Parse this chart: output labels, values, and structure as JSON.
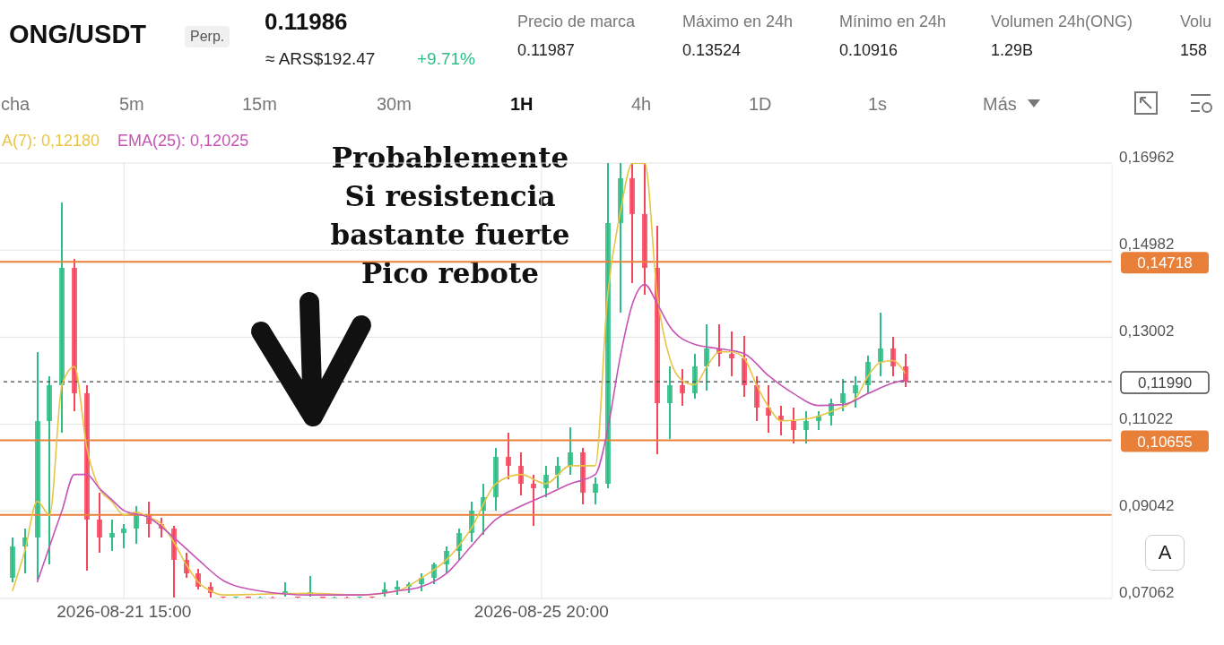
{
  "chart_data": {
    "type": "candlestick",
    "title": "ONG/USDT",
    "annotations": [
      "Perp.",
      "0.11986",
      "≈ ARS$192.47",
      "+9.71%",
      "Precio de marca",
      "0.11987",
      "Máximo en 24h",
      "0.13524",
      "Mínimo en 24h",
      "0.10916",
      "Volumen 24h(ONG)",
      "1.29B",
      "Volu",
      "158",
      "cha",
      "5m",
      "15m",
      "30m",
      "1H",
      "4h",
      "1D",
      "1s",
      "Más",
      "A",
      "Probablemente\nSi resistencia\nbastante fuerte\nPico rebote"
    ],
    "x": [
      "2026-08-20T12:00",
      "2026-08-20T15:00",
      "2026-08-20T18:00",
      "2026-08-20T21:00",
      "2026-08-21T00:00",
      "2026-08-21T03:00",
      "2026-08-21T06:00",
      "2026-08-21T09:00",
      "2026-08-21T12:00",
      "2026-08-21T15:00",
      "2026-08-21T18:00",
      "2026-08-21T21:00",
      "2026-08-22T00:00",
      "2026-08-22T03:00",
      "2026-08-22T06:00",
      "2026-08-22T09:00",
      "2026-08-22T12:00",
      "2026-08-22T15:00",
      "2026-08-22T18:00",
      "2026-08-22T21:00",
      "2026-08-23T00:00",
      "2026-08-23T03:00",
      "2026-08-23T06:00",
      "2026-08-23T09:00",
      "2026-08-23T12:00",
      "2026-08-23T15:00",
      "2026-08-23T18:00",
      "2026-08-23T21:00",
      "2026-08-24T00:00",
      "2026-08-24T03:00",
      "2026-08-24T06:00",
      "2026-08-24T09:00",
      "2026-08-24T12:00",
      "2026-08-24T15:00",
      "2026-08-24T18:00",
      "2026-08-24T21:00",
      "2026-08-25T00:00",
      "2026-08-25T03:00",
      "2026-08-25T06:00",
      "2026-08-25T09:00",
      "2026-08-25T12:00",
      "2026-08-25T15:00",
      "2026-08-25T18:00",
      "2026-08-25T21:00",
      "2026-08-26T00:00",
      "2026-08-26T03:00",
      "2026-08-26T06:00",
      "2026-08-26T09:00",
      "2026-08-26T12:00",
      "2026-08-26T15:00",
      "2026-08-26T18:00",
      "2026-08-26T21:00",
      "2026-08-27T00:00",
      "2026-08-27T03:00",
      "2026-08-27T06:00",
      "2026-08-27T09:00",
      "2026-08-27T12:00",
      "2026-08-27T15:00",
      "2026-08-27T18:00",
      "2026-08-27T21:00",
      "2026-08-28T00:00",
      "2026-08-28T03:00",
      "2026-08-28T06:00",
      "2026-08-28T09:00",
      "2026-08-28T12:00",
      "2026-08-28T15:00",
      "2026-08-28T18:00",
      "2026-08-28T21:00",
      "2026-08-29T00:00",
      "2026-08-29T03:00",
      "2026-08-29T06:00",
      "2026-08-29T09:00",
      "2026-08-29T12:00"
    ],
    "ohlc": [
      [
        0.0753,
        0.0845,
        0.0743,
        0.0825
      ],
      [
        0.0825,
        0.0865,
        0.0763,
        0.0845
      ],
      [
        0.0845,
        0.1267,
        0.0749,
        0.111
      ],
      [
        0.111,
        0.1212,
        0.0784,
        0.1192
      ],
      [
        0.1192,
        0.1606,
        0.1084,
        0.1457
      ],
      [
        0.1457,
        0.1478,
        0.1131,
        0.1172
      ],
      [
        0.1172,
        0.1192,
        0.0769,
        0.0886
      ],
      [
        0.0886,
        0.0947,
        0.081,
        0.0845
      ],
      [
        0.0845,
        0.0886,
        0.0814,
        0.0855
      ],
      [
        0.0855,
        0.0876,
        0.0821,
        0.0865
      ],
      [
        0.0865,
        0.0916,
        0.0831,
        0.0896
      ],
      [
        0.0896,
        0.0927,
        0.0845,
        0.0876
      ],
      [
        0.0876,
        0.089,
        0.0845,
        0.0865
      ],
      [
        0.0865,
        0.0872,
        0.0708,
        0.0794
      ],
      [
        0.0794,
        0.081,
        0.0753,
        0.0763
      ],
      [
        0.0763,
        0.0774,
        0.0727,
        0.0733
      ],
      [
        0.0733,
        0.0743,
        0.0708,
        0.0718
      ],
      [
        0.071,
        0.0711,
        0.07062,
        0.0708
      ],
      [
        0.0708,
        0.0711,
        0.07062,
        0.071
      ],
      [
        0.071,
        0.0711,
        0.07062,
        0.0707
      ],
      [
        0.0707,
        0.071,
        0.07062,
        0.0709
      ],
      [
        0.0709,
        0.0711,
        0.07062,
        0.0708
      ],
      [
        0.0718,
        0.0743,
        0.071,
        0.0723
      ],
      [
        0.071,
        0.0711,
        0.07062,
        0.0708
      ],
      [
        0.0718,
        0.0757,
        0.071,
        0.0721
      ],
      [
        0.071,
        0.0711,
        0.07062,
        0.0707
      ],
      [
        0.0707,
        0.071,
        0.07062,
        0.0709
      ],
      [
        0.0709,
        0.0711,
        0.07062,
        0.0708
      ],
      [
        0.0708,
        0.0711,
        0.07062,
        0.071
      ],
      [
        0.071,
        0.0711,
        0.07062,
        0.0708
      ],
      [
        0.0718,
        0.0743,
        0.071,
        0.0727
      ],
      [
        0.0727,
        0.0747,
        0.0714,
        0.0733
      ],
      [
        0.0733,
        0.0743,
        0.0718,
        0.0739
      ],
      [
        0.0739,
        0.0763,
        0.0723,
        0.0753
      ],
      [
        0.0753,
        0.0788,
        0.0739,
        0.0784
      ],
      [
        0.0784,
        0.0825,
        0.0763,
        0.0814
      ],
      [
        0.0814,
        0.0865,
        0.0794,
        0.0855
      ],
      [
        0.0855,
        0.0927,
        0.0835,
        0.0906
      ],
      [
        0.0906,
        0.0967,
        0.0851,
        0.0937
      ],
      [
        0.0937,
        0.1049,
        0.0906,
        0.1029
      ],
      [
        0.1029,
        0.1084,
        0.0978,
        0.1008
      ],
      [
        0.1008,
        0.1039,
        0.0941,
        0.0967
      ],
      [
        0.0967,
        0.0988,
        0.0872,
        0.0957
      ],
      [
        0.0957,
        0.1008,
        0.0937,
        0.0988
      ],
      [
        0.0988,
        0.1029,
        0.0957,
        0.1008
      ],
      [
        0.1008,
        0.1096,
        0.0988,
        0.1039
      ],
      [
        0.1039,
        0.1049,
        0.092,
        0.0947
      ],
      [
        0.0947,
        0.0982,
        0.092,
        0.0967
      ],
      [
        0.0967,
        0.16962,
        0.0957,
        0.1559
      ],
      [
        0.1559,
        0.16962,
        0.1355,
        0.1661
      ],
      [
        0.1661,
        0.16962,
        0.1423,
        0.158
      ],
      [
        0.158,
        0.16962,
        0.1396,
        0.1457
      ],
      [
        0.1457,
        0.1553,
        0.1035,
        0.1151
      ],
      [
        0.1151,
        0.1233,
        0.1069,
        0.1192
      ],
      [
        0.1192,
        0.1227,
        0.1145,
        0.1172
      ],
      [
        0.1172,
        0.1263,
        0.1161,
        0.1233
      ],
      [
        0.1233,
        0.1329,
        0.1178,
        0.1274
      ],
      [
        0.1274,
        0.1329,
        0.1233,
        0.1263
      ],
      [
        0.1263,
        0.1314,
        0.1212,
        0.1253
      ],
      [
        0.1253,
        0.1304,
        0.1165,
        0.1192
      ],
      [
        0.1192,
        0.1212,
        0.111,
        0.1141
      ],
      [
        0.1141,
        0.1192,
        0.1084,
        0.1121
      ],
      [
        0.1121,
        0.1145,
        0.1076,
        0.111
      ],
      [
        0.111,
        0.1141,
        0.1059,
        0.109
      ],
      [
        0.109,
        0.1131,
        0.1059,
        0.111
      ],
      [
        0.111,
        0.1131,
        0.109,
        0.1121
      ],
      [
        0.1121,
        0.1161,
        0.11,
        0.1151
      ],
      [
        0.1151,
        0.1206,
        0.1131,
        0.1172
      ],
      [
        0.1172,
        0.1212,
        0.1141,
        0.1192
      ],
      [
        0.1192,
        0.1259,
        0.1172,
        0.1243
      ],
      [
        0.1243,
        0.1355,
        0.1212,
        0.1274
      ],
      [
        0.1274,
        0.13,
        0.1212,
        0.1233
      ],
      [
        0.1233,
        0.1263,
        0.1186,
        0.1199
      ]
    ],
    "series": [
      {
        "name": "A(7): 0,12180",
        "type": "line",
        "color": "#e8c547",
        "x": [
          "2026-08-20T12:00",
          "2026-08-20T15:00",
          "2026-08-20T18:00",
          "2026-08-20T21:00",
          "2026-08-21T00:00",
          "2026-08-21T03:00",
          "2026-08-21T06:00",
          "2026-08-21T09:00",
          "2026-08-21T12:00",
          "2026-08-21T15:00",
          "2026-08-21T18:00",
          "2026-08-21T21:00",
          "2026-08-22T00:00",
          "2026-08-22T03:00",
          "2026-08-22T06:00",
          "2026-08-22T09:00",
          "2026-08-22T12:00",
          "2026-08-22T15:00",
          "2026-08-23T00:00",
          "2026-08-23T12:00",
          "2026-08-24T00:00",
          "2026-08-24T09:00",
          "2026-08-24T15:00",
          "2026-08-24T21:00",
          "2026-08-25T03:00",
          "2026-08-25T09:00",
          "2026-08-25T15:00",
          "2026-08-25T21:00",
          "2026-08-26T03:00",
          "2026-08-26T09:00",
          "2026-08-26T12:00",
          "2026-08-26T15:00",
          "2026-08-26T18:00",
          "2026-08-26T21:00",
          "2026-08-27T00:00",
          "2026-08-27T03:00",
          "2026-08-27T06:00",
          "2026-08-27T09:00",
          "2026-08-27T12:00",
          "2026-08-27T15:00",
          "2026-08-27T18:00",
          "2026-08-27T21:00",
          "2026-08-28T00:00",
          "2026-08-28T03:00",
          "2026-08-28T06:00",
          "2026-08-28T12:00",
          "2026-08-28T18:00",
          "2026-08-29T00:00",
          "2026-08-29T03:00",
          "2026-08-29T06:00",
          "2026-08-29T09:00",
          "2026-08-29T12:00"
        ],
        "values": [
          0.0723,
          0.0814,
          0.0927,
          0.0896,
          0.1192,
          0.1233,
          0.1049,
          0.0957,
          0.0927,
          0.0896,
          0.0902,
          0.089,
          0.0876,
          0.0835,
          0.0784,
          0.0743,
          0.0723,
          0.0714,
          0.0716,
          0.0718,
          0.0714,
          0.0723,
          0.0753,
          0.0794,
          0.0865,
          0.0967,
          0.0988,
          0.0967,
          0.1008,
          0.1008,
          0.1396,
          0.158,
          0.1696,
          0.1696,
          0.1396,
          0.1253,
          0.1202,
          0.1192,
          0.1233,
          0.1267,
          0.1267,
          0.1253,
          0.1192,
          0.1141,
          0.111,
          0.1114,
          0.1131,
          0.1161,
          0.1212,
          0.1243,
          0.1247,
          0.1218
        ]
      },
      {
        "name": "EMA(25): 0,12025",
        "type": "line",
        "color": "#c653b5",
        "x": [
          "2026-08-20T18:00",
          "2026-08-20T21:00",
          "2026-08-21T00:00",
          "2026-08-21T03:00",
          "2026-08-21T06:00",
          "2026-08-21T09:00",
          "2026-08-21T12:00",
          "2026-08-21T15:00",
          "2026-08-21T21:00",
          "2026-08-22T03:00",
          "2026-08-22T09:00",
          "2026-08-22T15:00",
          "2026-08-23T00:00",
          "2026-08-23T12:00",
          "2026-08-24T00:00",
          "2026-08-24T09:00",
          "2026-08-24T15:00",
          "2026-08-24T21:00",
          "2026-08-25T03:00",
          "2026-08-25T09:00",
          "2026-08-25T15:00",
          "2026-08-25T21:00",
          "2026-08-26T03:00",
          "2026-08-26T09:00",
          "2026-08-26T12:00",
          "2026-08-26T15:00",
          "2026-08-26T18:00",
          "2026-08-26T21:00",
          "2026-08-27T00:00",
          "2026-08-27T03:00",
          "2026-08-27T09:00",
          "2026-08-27T15:00",
          "2026-08-27T21:00",
          "2026-08-28T03:00",
          "2026-08-28T09:00",
          "2026-08-28T15:00",
          "2026-08-28T21:00",
          "2026-08-29T03:00",
          "2026-08-29T09:00",
          "2026-08-29T12:00"
        ],
        "values": [
          0.0743,
          0.0825,
          0.0906,
          0.0988,
          0.0988,
          0.0957,
          0.0931,
          0.0906,
          0.089,
          0.0845,
          0.0794,
          0.0747,
          0.0723,
          0.0714,
          0.0714,
          0.0723,
          0.0733,
          0.0763,
          0.0825,
          0.0886,
          0.0916,
          0.0941,
          0.0967,
          0.0988,
          0.109,
          0.1253,
          0.1376,
          0.142,
          0.1376,
          0.1325,
          0.1284,
          0.1274,
          0.1263,
          0.1212,
          0.1172,
          0.1145,
          0.1147,
          0.1172,
          0.1196,
          0.1203
        ]
      }
    ],
    "xlim": [
      "2026-08-20T09:00",
      "2026-08-31T14:00"
    ],
    "xticks": [
      {
        "value": "2026-08-21T15:00",
        "label": "2026-08-21 15:00"
      },
      {
        "value": "2026-08-25T20:00",
        "label": "2026-08-25 20:00"
      }
    ],
    "ylim": [
      0.07062,
      0.16962
    ],
    "yticks": [
      {
        "value": 0.07062,
        "label": "0,07062"
      },
      {
        "value": 0.09042,
        "label": "0,09042"
      },
      {
        "value": 0.11022,
        "label": "0,11022"
      },
      {
        "value": 0.13002,
        "label": "0,13002"
      },
      {
        "value": 0.14982,
        "label": "0,14982"
      },
      {
        "value": 0.16962,
        "label": "0,16962"
      }
    ],
    "ref_lines": [
      {
        "axis": "y",
        "value": 0.14718,
        "label": "0,14718",
        "color": "#e8803a",
        "line_style": "solid"
      },
      {
        "axis": "y",
        "value": 0.10655,
        "label": "0,10655",
        "color": "#e8803a",
        "line_style": "solid"
      },
      {
        "axis": "y",
        "value": 0.0896,
        "color": "#e8803a",
        "line_style": "solid"
      },
      {
        "axis": "y",
        "value": 0.1199,
        "label": "0,11990",
        "color": "#444444",
        "line_style": "dashed"
      }
    ],
    "grid": true,
    "legend": "top left",
    "marker": "none",
    "line_style": "solid"
  }
}
